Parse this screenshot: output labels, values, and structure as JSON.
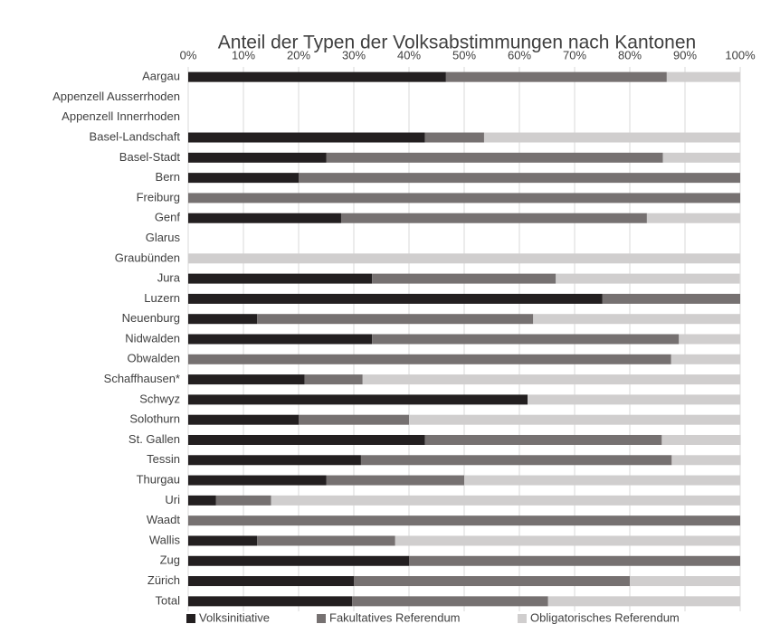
{
  "chart_data": {
    "type": "stacked-bar-horizontal",
    "title": "Anteil der Typen der Volksabstimmungen nach Kantonen",
    "categories": [
      "Aargau",
      "Appenzell Ausserrhoden",
      "Appenzell Innerrhoden",
      "Basel-Landschaft",
      "Basel-Stadt",
      "Bern",
      "Freiburg",
      "Genf",
      "Glarus",
      "Graubünden",
      "Jura",
      "Luzern",
      "Neuenburg",
      "Nidwalden",
      "Obwalden",
      "Schaffhausen*",
      "Schwyz",
      "Solothurn",
      "St. Gallen",
      "Tessin",
      "Thurgau",
      "Uri",
      "Waadt",
      "Wallis",
      "Zug",
      "Zürich",
      "Total"
    ],
    "series": [
      {
        "name": "Volksinitiative",
        "color": "#231f20",
        "values": [
          46.7,
          0,
          0,
          42.9,
          25,
          20,
          0,
          27.7,
          0,
          0,
          33.3,
          75,
          12.5,
          33.3,
          0,
          21.1,
          61.5,
          20,
          42.9,
          31.3,
          25,
          5,
          0,
          12.5,
          40,
          30,
          29.7
        ]
      },
      {
        "name": "Fakultatives Referendum",
        "color": "#767171",
        "values": [
          40,
          0,
          0,
          10.7,
          61,
          80,
          100,
          55.4,
          0,
          0,
          33.3,
          25,
          50,
          55.6,
          87.5,
          10.5,
          0,
          20,
          42.9,
          56.3,
          25,
          10,
          100,
          25,
          60,
          50,
          35.5
        ]
      },
      {
        "name": "Obligatorisches Referendum",
        "color": "#d0cece",
        "values": [
          13.3,
          0,
          0,
          46.4,
          14,
          0,
          0,
          16.9,
          0,
          100,
          33.3,
          0,
          37.5,
          11.1,
          12.5,
          68.4,
          38.5,
          60,
          14.3,
          12.5,
          50,
          85,
          0,
          62.5,
          0,
          20,
          34.8
        ]
      }
    ],
    "xlim": [
      0,
      100
    ],
    "xticks": [
      {
        "value": 0,
        "label": "0%"
      },
      {
        "value": 10,
        "label": "10%"
      },
      {
        "value": 20,
        "label": "20%"
      },
      {
        "value": 30,
        "label": "30%"
      },
      {
        "value": 40,
        "label": "40%"
      },
      {
        "value": 50,
        "label": "50%"
      },
      {
        "value": 60,
        "label": "60%"
      },
      {
        "value": 70,
        "label": "70%"
      },
      {
        "value": 80,
        "label": "80%"
      },
      {
        "value": 90,
        "label": "90%"
      },
      {
        "value": 100,
        "label": "100%"
      }
    ],
    "grid": true
  }
}
